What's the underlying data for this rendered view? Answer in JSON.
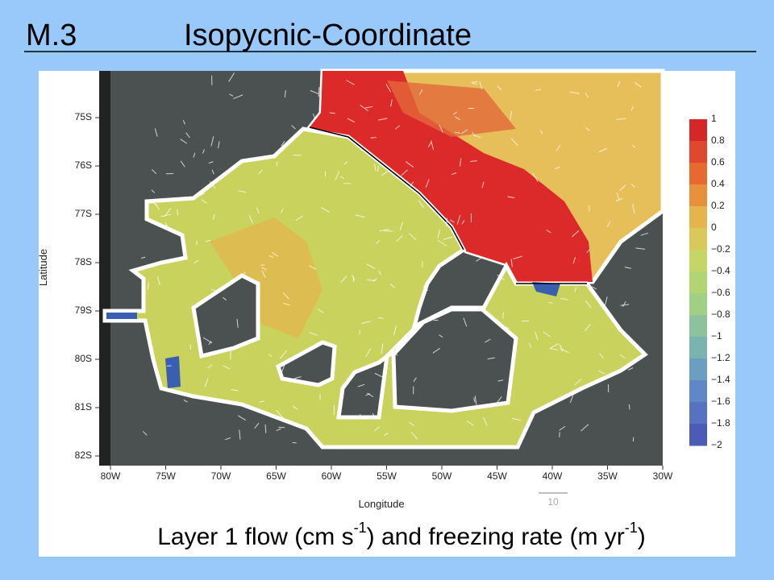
{
  "header": {
    "number": "M.3",
    "title": "Isopycnic-Coordinate"
  },
  "figure": {
    "y_axis_label": "Latitude",
    "x_axis_label": "Longitude",
    "lat_ticks": [
      "75S",
      "76S",
      "77S",
      "78S",
      "79S",
      "80S",
      "81S",
      "82S"
    ],
    "lon_ticks": [
      "80W",
      "75W",
      "70W",
      "65W",
      "60W",
      "55W",
      "50W",
      "45W",
      "40W",
      "35W",
      "30W"
    ],
    "colorbar_ticks": [
      "1",
      "0.8",
      "0.6",
      "0.4",
      "0.2",
      "0",
      "−0.2",
      "−0.4",
      "−0.6",
      "−0.8",
      "−1",
      "−1.2",
      "−1.4",
      "−1.6",
      "−1.8",
      "−2"
    ],
    "scale_arrow_label": "10",
    "caption": {
      "part1": "Layer 1 flow (cm s",
      "sup1": "-1",
      "part2": ") and freezing rate (m yr",
      "sup2": "-1",
      "part3": ")"
    }
  }
}
